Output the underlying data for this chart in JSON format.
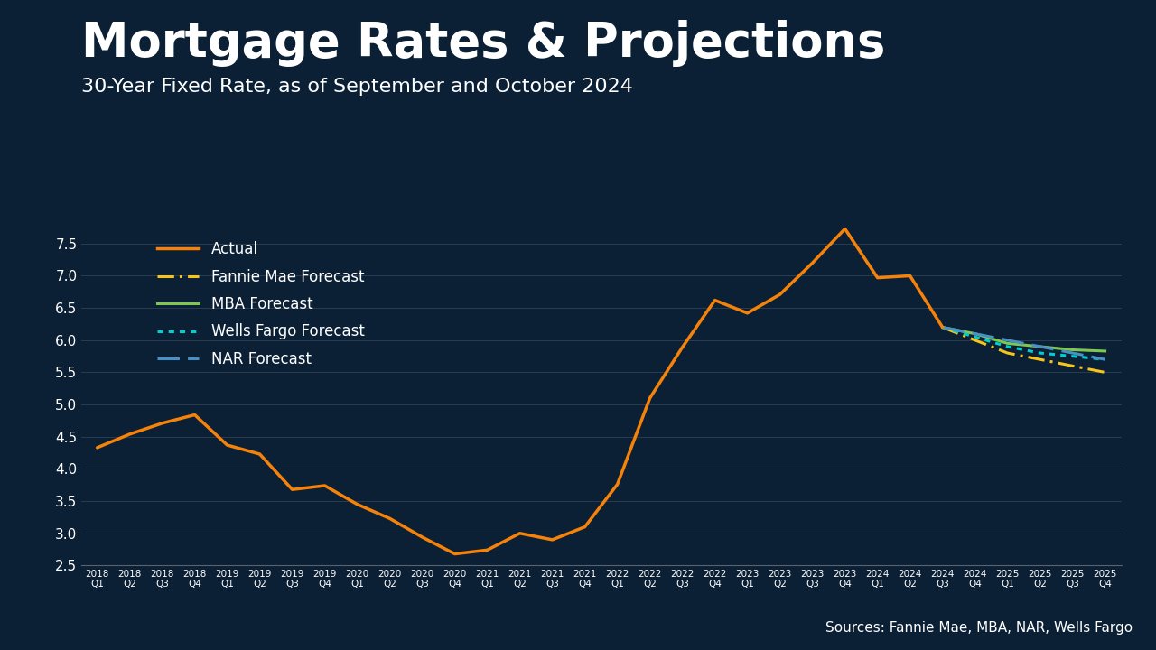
{
  "title": "Mortgage Rates & Projections",
  "subtitle": "30-Year Fixed Rate, as of September and October 2024",
  "source": "Sources: Fannie Mae, MBA, NAR, Wells Fargo",
  "bg_color": "#0b1f35",
  "text_color": "#ffffff",
  "bottom_bar_color": "#1565a0",
  "ylim": [
    2.5,
    7.75
  ],
  "yticks": [
    2.5,
    3.0,
    3.5,
    4.0,
    4.5,
    5.0,
    5.5,
    6.0,
    6.5,
    7.0,
    7.5
  ],
  "actual_color": "#f5820a",
  "fannie_color": "#f5c518",
  "mba_color": "#7ec850",
  "wells_color": "#00cfcf",
  "nar_color": "#4a90c4",
  "quarters": [
    "2018\nQ1",
    "2018\nQ2",
    "2018\nQ3",
    "2018\nQ4",
    "2019\nQ1",
    "2019\nQ2",
    "2019\nQ3",
    "2019\nQ4",
    "2020\nQ1",
    "2020\nQ2",
    "2020\nQ3",
    "2020\nQ4",
    "2021\nQ1",
    "2021\nQ2",
    "2021\nQ3",
    "2021\nQ4",
    "2022\nQ1",
    "2022\nQ2",
    "2022\nQ3",
    "2022\nQ4",
    "2023\nQ1",
    "2023\nQ2",
    "2023\nQ3",
    "2023\nQ4",
    "2024\nQ1",
    "2024\nQ2",
    "2024\nQ3",
    "2024\nQ4",
    "2025\nQ1",
    "2025\nQ2",
    "2025\nQ3",
    "2025\nQ4"
  ],
  "actual_x": [
    0,
    1,
    2,
    3,
    4,
    5,
    6,
    7,
    8,
    9,
    10,
    11,
    12,
    13,
    14,
    15,
    16,
    17,
    18,
    19,
    20,
    21,
    22,
    23,
    24,
    25,
    26
  ],
  "actual_y": [
    4.33,
    4.54,
    4.71,
    4.84,
    4.37,
    4.23,
    3.68,
    3.74,
    3.45,
    3.23,
    2.94,
    2.68,
    2.74,
    3.0,
    2.9,
    3.1,
    3.76,
    5.1,
    5.89,
    6.62,
    6.42,
    6.71,
    7.2,
    7.73,
    6.97,
    7.0,
    6.2
  ],
  "fannie_x": [
    26,
    27,
    28,
    29,
    30,
    31
  ],
  "fannie_y": [
    6.2,
    6.0,
    5.8,
    5.7,
    5.6,
    5.5
  ],
  "mba_x": [
    26,
    27,
    28,
    29,
    30,
    31
  ],
  "mba_y": [
    6.2,
    6.1,
    5.95,
    5.9,
    5.85,
    5.83
  ],
  "wells_x": [
    26,
    27,
    28,
    29,
    30,
    31
  ],
  "wells_y": [
    6.2,
    6.05,
    5.9,
    5.8,
    5.75,
    5.7
  ],
  "nar_x": [
    26,
    27,
    28,
    29,
    30,
    31
  ],
  "nar_y": [
    6.2,
    6.1,
    6.0,
    5.9,
    5.8,
    5.7
  ]
}
